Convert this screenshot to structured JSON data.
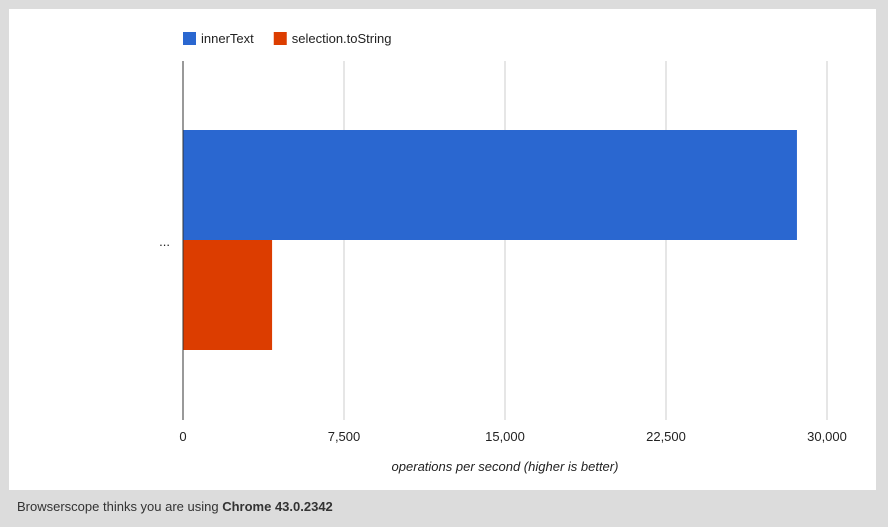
{
  "chart_data": {
    "type": "bar",
    "orientation": "horizontal",
    "categories": [
      "..."
    ],
    "series": [
      {
        "name": "innerText",
        "color": "#2a67d0",
        "values": [
          28600
        ]
      },
      {
        "name": "selection.toString",
        "color": "#dc3d00",
        "values": [
          4150
        ]
      }
    ],
    "xlabel": "operations per second (higher is better)",
    "xlim": [
      0,
      30000
    ],
    "xticks": [
      0,
      7500,
      15000,
      22500,
      30000
    ],
    "xtick_labels": [
      "0",
      "7,500",
      "15,000",
      22500,
      "30,000"
    ],
    "grid": true,
    "legend_position": "top-left"
  },
  "footer": {
    "prefix": "Browserscope thinks you are using ",
    "browser": "Chrome 43.0.2342"
  }
}
